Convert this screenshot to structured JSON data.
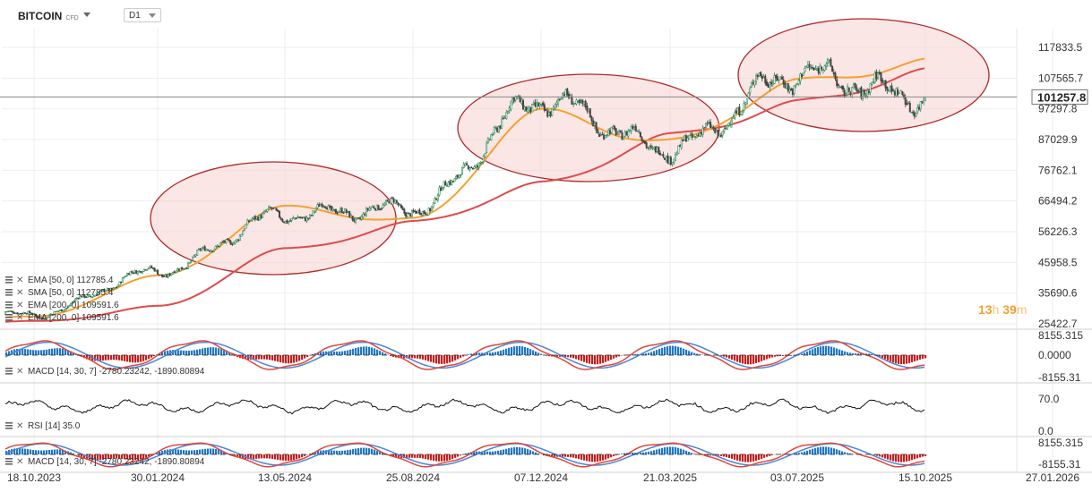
{
  "header": {
    "symbol": "BITCOIN",
    "symbol_type": "CFD",
    "timeframe": "D1"
  },
  "timer": {
    "hours": "13",
    "h": "h",
    "minutes": "39",
    "m": "m"
  },
  "colors": {
    "ema50": "#f5a030",
    "ema200": "#e04a4a",
    "up_candle": "#2e8b57",
    "down_candle": "#444444",
    "ellipse_fill": "#f7c7c7",
    "ellipse_stroke": "#b02828",
    "macd_line": "#e0463c",
    "signal_line": "#4a86d8",
    "hist_pos": "#1f78c8",
    "hist_neg": "#c81e1e",
    "rsi_line": "#111111"
  },
  "legend": {
    "row1": "EMA [50, 0] 112785.4",
    "row2": "SMA [50, 0] 112785.4",
    "row3": "EMA [200, 0] 109591.6",
    "row4": "EMA [200, 0] 109591.6"
  },
  "indicator_labels": {
    "macd1": "MACD [14, 30, 7] -2780.23242, -1890.80894",
    "rsi": "RSI [14] 35.0",
    "macd2": "MACD [14, 30, 7] -2780.23242, -1890.80894"
  },
  "chart_data": {
    "type": "line",
    "title": "BITCOIN",
    "price_axis": {
      "ticks": [
        "117833.5",
        "107565.7",
        "97297.8",
        "87029.9",
        "76762.1",
        "66494.2",
        "56226.3",
        "45958.5",
        "35690.6",
        "25422.7"
      ],
      "tick_values": [
        117833.5,
        107565.7,
        97297.8,
        87029.9,
        76762.1,
        66494.2,
        56226.3,
        45958.5,
        35690.6,
        25422.7
      ],
      "current_price": "101257.8",
      "current_value": 101257.8
    },
    "x_axis": {
      "ticks": [
        "18.10.2023",
        "30.01.2024",
        "13.05.2024",
        "25.08.2024",
        "07.12.2024",
        "21.03.2025",
        "03.07.2025",
        "15.10.2025",
        "27.01.2026"
      ]
    },
    "price_series": {
      "name": "BITCOIN",
      "dates": [
        "18.10.2023",
        "30.01.2024",
        "13.05.2024",
        "25.08.2024",
        "07.12.2024",
        "21.03.2025",
        "03.07.2025",
        "15.10.2025"
      ],
      "close_anchors": [
        28500,
        43000,
        62000,
        64000,
        100000,
        84000,
        109000,
        101257.8
      ]
    },
    "ema50_series": {
      "name": "EMA [50, 0]",
      "anchors": [
        27500,
        41000,
        64000,
        60000,
        96000,
        86000,
        106000,
        112785.4
      ]
    },
    "ema200_series": {
      "name": "EMA [200, 0]",
      "anchors": [
        26000,
        31000,
        50000,
        59000,
        72000,
        88000,
        99000,
        109591.6
      ]
    },
    "macd_panel": {
      "ticks": [
        "8155.315",
        "0.0000",
        "-8155.31"
      ],
      "tick_values": [
        8155.315,
        0,
        -8155.31
      ],
      "macd": -2780.23242,
      "signal": -1890.80894
    },
    "rsi_panel": {
      "ticks": [
        "70.0",
        "0.0"
      ],
      "tick_values": [
        70,
        0
      ],
      "value": 35.0
    },
    "macd_panel_2": {
      "ticks": [
        "8155.315",
        "-8155.31"
      ],
      "tick_values": [
        8155.315,
        -8155.31
      ]
    },
    "grid": true
  }
}
